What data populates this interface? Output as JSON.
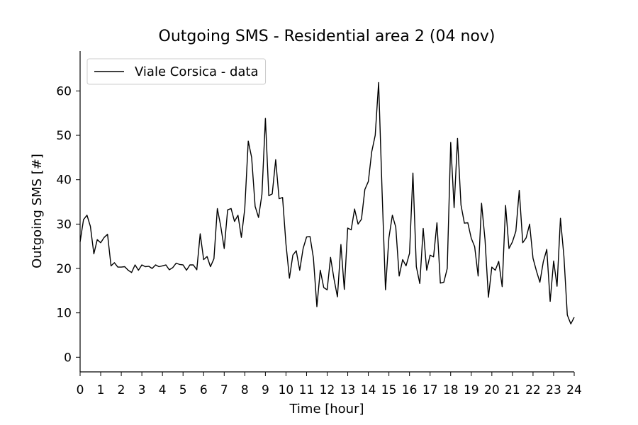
{
  "chart_data": {
    "type": "line",
    "title": "Outgoing SMS - Residential area 2 (04 nov)",
    "xlabel": "Time [hour]",
    "ylabel": "Outgoing SMS [#]",
    "xlim": [
      0,
      24
    ],
    "ylim": [
      -3.3,
      69
    ],
    "xticks": [
      0,
      1,
      2,
      3,
      4,
      5,
      6,
      7,
      8,
      9,
      10,
      11,
      12,
      13,
      14,
      15,
      16,
      17,
      18,
      19,
      20,
      21,
      22,
      23,
      24
    ],
    "yticks": [
      0,
      10,
      20,
      30,
      40,
      50,
      60
    ],
    "grid": false,
    "legend_position": "top-left",
    "series": [
      {
        "name": "Viale Corsica - data",
        "color": "#000000",
        "x": [
          0,
          0.167,
          0.333,
          0.5,
          0.667,
          0.833,
          1,
          1.167,
          1.333,
          1.5,
          1.667,
          1.833,
          2,
          2.167,
          2.333,
          2.5,
          2.667,
          2.833,
          3,
          3.167,
          3.333,
          3.5,
          3.667,
          3.833,
          4,
          4.167,
          4.333,
          4.5,
          4.667,
          4.833,
          5,
          5.167,
          5.333,
          5.5,
          5.667,
          5.833,
          6,
          6.167,
          6.333,
          6.5,
          6.667,
          6.833,
          7,
          7.167,
          7.333,
          7.5,
          7.667,
          7.833,
          8,
          8.167,
          8.333,
          8.5,
          8.667,
          8.833,
          9,
          9.167,
          9.333,
          9.5,
          9.667,
          9.833,
          10,
          10.167,
          10.333,
          10.5,
          10.667,
          10.833,
          11,
          11.167,
          11.333,
          11.5,
          11.667,
          11.833,
          12,
          12.167,
          12.333,
          12.5,
          12.667,
          12.833,
          13,
          13.167,
          13.333,
          13.5,
          13.667,
          13.833,
          14,
          14.167,
          14.333,
          14.5,
          14.667,
          14.833,
          15,
          15.167,
          15.333,
          15.5,
          15.667,
          15.833,
          16,
          16.167,
          16.333,
          16.5,
          16.667,
          16.833,
          17,
          17.167,
          17.333,
          17.5,
          17.667,
          17.833,
          18,
          18.167,
          18.333,
          18.5,
          18.667,
          18.833,
          19,
          19.167,
          19.333,
          19.5,
          19.667,
          19.833,
          20,
          20.167,
          20.333,
          20.5,
          20.667,
          20.833,
          21,
          21.167,
          21.333,
          21.5,
          21.667,
          21.833,
          22,
          22.167,
          22.333,
          22.5,
          22.667,
          22.833,
          23,
          23.167,
          23.333,
          23.5,
          23.667,
          23.833,
          24
        ],
        "y": [
          26,
          31,
          32,
          29.5,
          23.3,
          26.5,
          25.8,
          27,
          27.7,
          20.6,
          21.3,
          20.3,
          20.3,
          20.4,
          19.6,
          19.1,
          20.8,
          19.6,
          20.8,
          20.4,
          20.5,
          20,
          20.8,
          20.4,
          20.6,
          20.8,
          19.7,
          20.2,
          21.2,
          20.9,
          20.8,
          19.6,
          20.8,
          20.8,
          19.7,
          27.8,
          22,
          22.7,
          20.4,
          22.2,
          33.5,
          29.5,
          24.5,
          33.2,
          33.5,
          30.6,
          32,
          27,
          33.5,
          48.7,
          45,
          34,
          31.5,
          36.7,
          53.8,
          36.4,
          36.8,
          44.5,
          35.7,
          36,
          25.5,
          17.8,
          23,
          24,
          19.6,
          24.5,
          27.1,
          27.2,
          22.4,
          11.4,
          19.6,
          15.7,
          15.2,
          22.5,
          17.6,
          13.6,
          25.4,
          15.3,
          29.1,
          28.7,
          33.4,
          30,
          31.1,
          37.8,
          39.6,
          46.3,
          50,
          61.9,
          37.3,
          15.2,
          26.9,
          32,
          29.3,
          18.3,
          22,
          20.6,
          23.4,
          41.5,
          20.4,
          16.6,
          29,
          19.6,
          23,
          22.6,
          30.3,
          16.7,
          16.9,
          20,
          48.4,
          33.7,
          49.3,
          34.3,
          30.2,
          30.3,
          26.8,
          24.9,
          18.3,
          34.7,
          26.5,
          13.5,
          20.3,
          19.6,
          21.6,
          15.9,
          34.2,
          24.5,
          26,
          28.4,
          37.6,
          25.8,
          26.9,
          30,
          22.3,
          19.4,
          16.9,
          21.5,
          24.3,
          12.6,
          21.7,
          16,
          31.3,
          22.7,
          9.5,
          7.5,
          9
        ]
      }
    ]
  }
}
